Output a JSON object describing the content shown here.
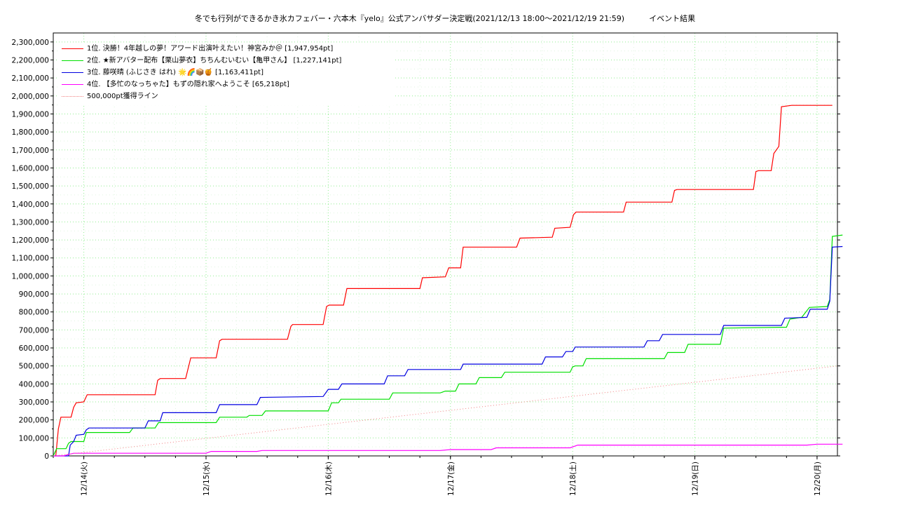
{
  "chart_data": {
    "type": "line",
    "title": "冬でも行列ができるかき氷カフェバー・六本木『yelo』公式アンバサダー決定戦(2021/12/13 18:00～2021/12/19 21:59)",
    "title_suffix": "イベント結果",
    "xlabel": "",
    "ylabel": "",
    "xlim": [
      "2021/12/13 18:00",
      "2021/12/20 04:00"
    ],
    "ylim": [
      0,
      2350000
    ],
    "x_ticks": [
      "12/14(火)",
      "12/15(水)",
      "12/16(木)",
      "12/17(金)",
      "12/18(土)",
      "12/19(日)",
      "12/20(月)"
    ],
    "y_ticks": [
      "0",
      "100,000",
      "200,000",
      "300,000",
      "400,000",
      "500,000",
      "600,000",
      "700,000",
      "800,000",
      "900,000",
      "1,000,000",
      "1,100,000",
      "1,200,000",
      "1,300,000",
      "1,400,000",
      "1,500,000",
      "1,600,000",
      "1,700,000",
      "1,800,000",
      "1,900,000",
      "2,000,000",
      "2,100,000",
      "2,200,000",
      "2,300,000"
    ],
    "grid": true,
    "legend_position": "top-left",
    "series": [
      {
        "name": "1位. 決勝！4年越しの夢！アワード出演叶えたい！神宮みか＠ [1,947,954pt]",
        "color": "#ff0000",
        "style": "solid",
        "points": [
          [
            "12/13 18:30",
            0
          ],
          [
            "12/13 19:00",
            150000
          ],
          [
            "12/13 19:30",
            215000
          ],
          [
            "12/13 21:30",
            215000
          ],
          [
            "12/13 22:00",
            270000
          ],
          [
            "12/13 22:30",
            295000
          ],
          [
            "12/14 00:00",
            300000
          ],
          [
            "12/14 00:40",
            340000
          ],
          [
            "12/14 14:00",
            340000
          ],
          [
            "12/14 14:30",
            420000
          ],
          [
            "12/14 15:00",
            430000
          ],
          [
            "12/14 20:00",
            430000
          ],
          [
            "12/14 21:00",
            545000
          ],
          [
            "12/15 02:00",
            545000
          ],
          [
            "12/15 02:40",
            640000
          ],
          [
            "12/15 03:10",
            648000
          ],
          [
            "12/15 16:00",
            648000
          ],
          [
            "12/15 16:40",
            720000
          ],
          [
            "12/15 17:00",
            730000
          ],
          [
            "12/15 23:00",
            730000
          ],
          [
            "12/15 23:40",
            830000
          ],
          [
            "12/16 00:10",
            838000
          ],
          [
            "12/16 03:00",
            838000
          ],
          [
            "12/16 03:40",
            930000
          ],
          [
            "12/16 18:00",
            930000
          ],
          [
            "12/16 18:30",
            990000
          ],
          [
            "12/16 23:00",
            995000
          ],
          [
            "12/16 23:40",
            1045000
          ],
          [
            "12/17 02:00",
            1045000
          ],
          [
            "12/17 02:30",
            1160000
          ],
          [
            "12/17 13:00",
            1160000
          ],
          [
            "12/17 13:40",
            1210000
          ],
          [
            "12/17 20:00",
            1215000
          ],
          [
            "12/17 20:30",
            1265000
          ],
          [
            "12/17 23:30",
            1270000
          ],
          [
            "12/18 00:10",
            1340000
          ],
          [
            "12/18 00:40",
            1355000
          ],
          [
            "12/18 10:00",
            1355000
          ],
          [
            "12/18 10:30",
            1410000
          ],
          [
            "12/18 19:30",
            1410000
          ],
          [
            "12/18 20:00",
            1475000
          ],
          [
            "12/18 20:30",
            1480000
          ],
          [
            "12/19 11:30",
            1480000
          ],
          [
            "12/19 12:00",
            1580000
          ],
          [
            "12/19 12:30",
            1585000
          ],
          [
            "12/19 15:00",
            1585000
          ],
          [
            "12/19 15:30",
            1680000
          ],
          [
            "12/19 16:30",
            1720000
          ],
          [
            "12/19 17:00",
            1940000
          ],
          [
            "12/19 19:00",
            1947954
          ],
          [
            "12/20 03:00",
            1947954
          ]
        ]
      },
      {
        "name": "2位. ★新アバター配布【栗山夢衣】ちちんむいむい【亀甲さん】 [1,227,141pt]",
        "color": "#00e000",
        "style": "solid",
        "points": [
          [
            "12/13 18:00",
            0
          ],
          [
            "12/13 18:40",
            40000
          ],
          [
            "12/13 20:30",
            40000
          ],
          [
            "12/13 21:00",
            70000
          ],
          [
            "12/13 21:30",
            80000
          ],
          [
            "12/14 00:00",
            80000
          ],
          [
            "12/14 00:30",
            130000
          ],
          [
            "12/14 09:00",
            130000
          ],
          [
            "12/14 09:40",
            155000
          ],
          [
            "12/14 14:00",
            155000
          ],
          [
            "12/14 14:40",
            185000
          ],
          [
            "12/15 02:00",
            185000
          ],
          [
            "12/15 02:40",
            215000
          ],
          [
            "12/15 08:00",
            215000
          ],
          [
            "12/15 08:30",
            225000
          ],
          [
            "12/15 11:00",
            225000
          ],
          [
            "12/15 11:40",
            250000
          ],
          [
            "12/16 00:00",
            250000
          ],
          [
            "12/16 00:40",
            295000
          ],
          [
            "12/16 02:00",
            295000
          ],
          [
            "12/16 02:30",
            315000
          ],
          [
            "12/16 12:00",
            315000
          ],
          [
            "12/16 12:40",
            350000
          ],
          [
            "12/16 22:00",
            350000
          ],
          [
            "12/16 23:00",
            360000
          ],
          [
            "12/17 01:00",
            360000
          ],
          [
            "12/17 01:40",
            400000
          ],
          [
            "12/17 05:00",
            400000
          ],
          [
            "12/17 05:40",
            435000
          ],
          [
            "12/17 10:00",
            435000
          ],
          [
            "12/17 10:40",
            465000
          ],
          [
            "12/17 23:30",
            465000
          ],
          [
            "12/18 00:00",
            495000
          ],
          [
            "12/18 00:30",
            500000
          ],
          [
            "12/18 02:00",
            500000
          ],
          [
            "12/18 02:40",
            540000
          ],
          [
            "12/18 18:00",
            540000
          ],
          [
            "12/18 18:40",
            575000
          ],
          [
            "12/18 22:00",
            575000
          ],
          [
            "12/18 22:40",
            620000
          ],
          [
            "12/19 05:00",
            620000
          ],
          [
            "12/19 05:40",
            710000
          ],
          [
            "12/19 18:00",
            715000
          ],
          [
            "12/19 18:40",
            760000
          ],
          [
            "12/19 21:00",
            770000
          ],
          [
            "12/19 22:30",
            825000
          ],
          [
            "12/20 02:00",
            830000
          ],
          [
            "12/20 02:30",
            870000
          ],
          [
            "12/20 03:00",
            1220000
          ],
          [
            "12/20 05:00",
            1227141
          ]
        ]
      },
      {
        "name": "3位. 藤咲晴 (ふじさき はれ) 🌟🌈📦🍯 [1,163,411pt]",
        "color": "#0000e0",
        "style": "solid",
        "points": [
          [
            "12/13 18:00",
            0
          ],
          [
            "12/13 21:00",
            0
          ],
          [
            "12/13 21:20",
            60000
          ],
          [
            "12/13 22:00",
            80000
          ],
          [
            "12/13 22:30",
            115000
          ],
          [
            "12/14 00:00",
            120000
          ],
          [
            "12/14 00:30",
            145000
          ],
          [
            "12/14 01:00",
            155000
          ],
          [
            "12/14 12:00",
            155000
          ],
          [
            "12/14 12:40",
            195000
          ],
          [
            "12/14 15:00",
            195000
          ],
          [
            "12/14 15:30",
            240000
          ],
          [
            "12/15 02:00",
            240000
          ],
          [
            "12/15 02:40",
            285000
          ],
          [
            "12/15 10:00",
            285000
          ],
          [
            "12/15 10:40",
            325000
          ],
          [
            "12/15 23:00",
            330000
          ],
          [
            "12/16 00:00",
            370000
          ],
          [
            "12/16 02:00",
            370000
          ],
          [
            "12/16 02:40",
            400000
          ],
          [
            "12/16 11:00",
            400000
          ],
          [
            "12/16 11:40",
            445000
          ],
          [
            "12/16 15:00",
            445000
          ],
          [
            "12/16 15:40",
            480000
          ],
          [
            "12/17 02:00",
            480000
          ],
          [
            "12/17 02:30",
            510000
          ],
          [
            "12/17 18:00",
            510000
          ],
          [
            "12/17 18:40",
            550000
          ],
          [
            "12/17 22:00",
            550000
          ],
          [
            "12/17 22:40",
            580000
          ],
          [
            "12/18 00:00",
            580000
          ],
          [
            "12/18 00:30",
            605000
          ],
          [
            "12/18 14:00",
            605000
          ],
          [
            "12/18 14:40",
            640000
          ],
          [
            "12/18 17:00",
            640000
          ],
          [
            "12/18 17:40",
            675000
          ],
          [
            "12/19 05:00",
            675000
          ],
          [
            "12/19 05:40",
            725000
          ],
          [
            "12/19 17:00",
            725000
          ],
          [
            "12/19 17:40",
            765000
          ],
          [
            "12/19 22:00",
            770000
          ],
          [
            "12/19 22:40",
            815000
          ],
          [
            "12/20 02:00",
            815000
          ],
          [
            "12/20 02:30",
            860000
          ],
          [
            "12/20 03:00",
            1160000
          ],
          [
            "12/20 05:00",
            1163411
          ]
        ]
      },
      {
        "name": "4位. 【多忙のなっちゃた】もずの隠れ家へようこそ [65,218pt]",
        "color": "#ff00ff",
        "style": "solid",
        "points": [
          [
            "12/13 18:00",
            0
          ],
          [
            "12/13 20:00",
            0
          ],
          [
            "12/13 21:00",
            8000
          ],
          [
            "12/13 22:00",
            15000
          ],
          [
            "12/15 00:00",
            15000
          ],
          [
            "12/15 01:00",
            25000
          ],
          [
            "12/15 10:00",
            25000
          ],
          [
            "12/15 11:00",
            30000
          ],
          [
            "12/16 22:00",
            30000
          ],
          [
            "12/17 00:00",
            35000
          ],
          [
            "12/17 08:00",
            35000
          ],
          [
            "12/17 09:00",
            45000
          ],
          [
            "12/17 23:30",
            45000
          ],
          [
            "12/18 01:00",
            60000
          ],
          [
            "12/19 22:00",
            60000
          ],
          [
            "12/20 00:00",
            65000
          ],
          [
            "12/20 05:00",
            65218
          ]
        ]
      },
      {
        "name": "500,000pt獲得ライン",
        "color": "#f08080",
        "style": "dotted",
        "points": [
          [
            "12/13 18:00",
            0
          ],
          [
            "12/20 04:00",
            500000
          ]
        ]
      }
    ]
  }
}
